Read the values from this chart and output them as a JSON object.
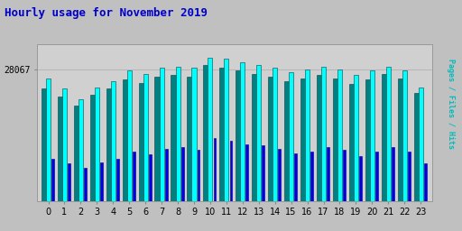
{
  "title": "Hourly usage for November 2019",
  "title_color": "#0000cc",
  "title_fontsize": 9,
  "hours": [
    0,
    1,
    2,
    3,
    4,
    5,
    6,
    7,
    8,
    9,
    10,
    11,
    12,
    13,
    14,
    15,
    16,
    17,
    18,
    19,
    20,
    21,
    22,
    23
  ],
  "ylabel_text": "28067",
  "background_color": "#c0c0c0",
  "plot_bg": "#d0d0d0",
  "bar_cyan_color": "#00ffff",
  "bar_teal_color": "#008080",
  "bar_blue_color": "#0000ee",
  "bar_border_color": "#004444",
  "hits": [
    82,
    75,
    68,
    76,
    80,
    87,
    85,
    89,
    90,
    89,
    96,
    95,
    93,
    91,
    89,
    86,
    88,
    90,
    88,
    84,
    87,
    90,
    87,
    76
  ],
  "files": [
    75,
    70,
    64,
    71,
    75,
    81,
    79,
    83,
    84,
    83,
    91,
    89,
    87,
    85,
    83,
    80,
    82,
    84,
    82,
    78,
    81,
    85,
    82,
    72
  ],
  "pages": [
    28,
    25,
    22,
    26,
    28,
    33,
    31,
    35,
    36,
    34,
    42,
    40,
    38,
    37,
    35,
    32,
    33,
    36,
    34,
    30,
    33,
    36,
    33,
    25
  ],
  "ylim": [
    0,
    105
  ],
  "ytick_val": 88,
  "figsize": [
    5.12,
    2.56
  ],
  "dpi": 100
}
